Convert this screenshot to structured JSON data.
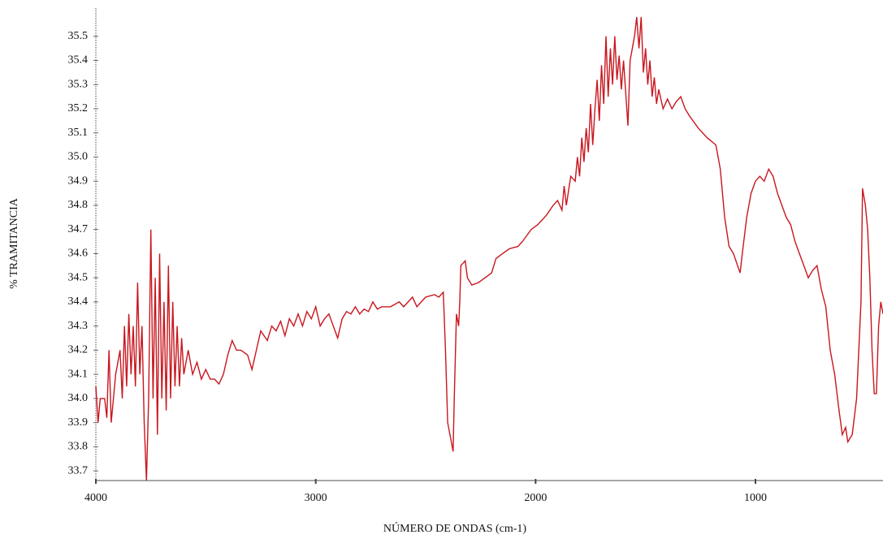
{
  "chart_data": {
    "type": "line",
    "xlabel": "NÚMERO DE ONDAS (cm-1)",
    "ylabel": "% TRAMITANCIA",
    "xlim": [
      4000,
      420
    ],
    "ylim": [
      33.66,
      35.6
    ],
    "xticks": [
      4000,
      3000,
      2000,
      1000
    ],
    "yticks": [
      33.7,
      33.8,
      33.9,
      {
        "value": 34,
        "label": "34.0"
      },
      34.1,
      34.2,
      34.3,
      34.4,
      34.5,
      34.6,
      34.7,
      34.8,
      34.9,
      {
        "value": 35,
        "label": "35.0"
      },
      35.1,
      35.2,
      35.3,
      35.4,
      35.5
    ],
    "x": [
      4000,
      3990,
      3980,
      3960,
      3950,
      3940,
      3930,
      3910,
      3890,
      3880,
      3870,
      3860,
      3850,
      3840,
      3830,
      3820,
      3810,
      3800,
      3790,
      3780,
      3770,
      3760,
      3750,
      3740,
      3730,
      3720,
      3710,
      3700,
      3690,
      3680,
      3670,
      3660,
      3650,
      3640,
      3630,
      3620,
      3610,
      3600,
      3580,
      3560,
      3540,
      3520,
      3500,
      3480,
      3460,
      3440,
      3420,
      3400,
      3380,
      3360,
      3340,
      3310,
      3290,
      3270,
      3250,
      3220,
      3200,
      3180,
      3160,
      3140,
      3120,
      3100,
      3080,
      3060,
      3040,
      3020,
      3000,
      2980,
      2960,
      2940,
      2920,
      2900,
      2880,
      2860,
      2840,
      2820,
      2800,
      2780,
      2760,
      2740,
      2720,
      2700,
      2660,
      2620,
      2600,
      2580,
      2560,
      2540,
      2520,
      2500,
      2460,
      2440,
      2420,
      2410,
      2400,
      2375,
      2370,
      2360,
      2350,
      2345,
      2340,
      2320,
      2310,
      2290,
      2260,
      2230,
      2200,
      2180,
      2150,
      2120,
      2080,
      2060,
      2020,
      1990,
      1950,
      1920,
      1900,
      1880,
      1870,
      1860,
      1840,
      1820,
      1810,
      1800,
      1790,
      1780,
      1770,
      1760,
      1750,
      1740,
      1730,
      1720,
      1710,
      1700,
      1690,
      1680,
      1670,
      1660,
      1650,
      1640,
      1630,
      1620,
      1610,
      1600,
      1580,
      1570,
      1560,
      1550,
      1540,
      1530,
      1520,
      1510,
      1500,
      1490,
      1480,
      1470,
      1460,
      1450,
      1440,
      1420,
      1400,
      1380,
      1360,
      1340,
      1320,
      1300,
      1260,
      1220,
      1180,
      1160,
      1140,
      1120,
      1100,
      1070,
      1060,
      1040,
      1020,
      1000,
      980,
      960,
      940,
      920,
      900,
      880,
      860,
      840,
      820,
      800,
      780,
      760,
      740,
      720,
      700,
      680,
      660,
      640,
      620,
      605,
      590,
      580,
      560,
      540,
      520,
      513,
      500,
      490,
      480,
      470,
      460,
      450,
      440,
      430,
      420
    ],
    "series": [
      {
        "color": "#c8161e",
        "values": [
          34.05,
          33.9,
          34.0,
          34.0,
          33.92,
          34.2,
          33.9,
          34.1,
          34.2,
          34.0,
          34.3,
          34.05,
          34.35,
          34.1,
          34.3,
          34.05,
          34.48,
          34.1,
          34.3,
          33.9,
          33.66,
          34.0,
          34.7,
          34.0,
          34.5,
          33.85,
          34.6,
          34.0,
          34.4,
          33.95,
          34.55,
          34.0,
          34.4,
          34.05,
          34.3,
          34.05,
          34.25,
          34.1,
          34.2,
          34.1,
          34.15,
          34.08,
          34.12,
          34.08,
          34.08,
          34.06,
          34.1,
          34.18,
          34.24,
          34.2,
          34.2,
          34.18,
          34.12,
          34.2,
          34.28,
          34.24,
          34.3,
          34.28,
          34.32,
          34.26,
          34.33,
          34.3,
          34.35,
          34.3,
          34.36,
          34.33,
          34.38,
          34.3,
          34.33,
          34.35,
          34.3,
          34.25,
          34.33,
          34.36,
          34.35,
          34.38,
          34.35,
          34.37,
          34.36,
          34.4,
          34.37,
          34.38,
          34.38,
          34.4,
          34.38,
          34.4,
          34.42,
          34.38,
          34.4,
          34.42,
          34.43,
          34.42,
          34.44,
          34.2,
          33.9,
          33.78,
          34.0,
          34.35,
          34.3,
          34.4,
          34.55,
          34.57,
          34.5,
          34.47,
          34.48,
          34.5,
          34.52,
          34.58,
          34.6,
          34.62,
          34.63,
          34.65,
          34.7,
          34.72,
          34.76,
          34.8,
          34.82,
          34.78,
          34.88,
          34.8,
          34.92,
          34.9,
          35.0,
          34.92,
          35.08,
          34.98,
          35.12,
          35.02,
          35.22,
          35.05,
          35.2,
          35.32,
          35.15,
          35.38,
          35.22,
          35.5,
          35.25,
          35.45,
          35.3,
          35.5,
          35.32,
          35.42,
          35.28,
          35.4,
          35.13,
          35.4,
          35.45,
          35.5,
          35.58,
          35.45,
          35.58,
          35.35,
          35.45,
          35.3,
          35.4,
          35.25,
          35.33,
          35.22,
          35.28,
          35.2,
          35.24,
          35.2,
          35.23,
          35.25,
          35.2,
          35.17,
          35.12,
          35.08,
          35.05,
          34.95,
          34.75,
          34.63,
          34.6,
          34.52,
          34.6,
          34.75,
          34.85,
          34.9,
          34.92,
          34.9,
          34.95,
          34.92,
          34.85,
          34.8,
          34.75,
          34.72,
          34.65,
          34.6,
          34.55,
          34.5,
          34.53,
          34.55,
          34.45,
          34.38,
          34.2,
          34.1,
          33.95,
          33.85,
          33.88,
          33.82,
          33.85,
          34.0,
          34.4,
          34.87,
          34.8,
          34.7,
          34.5,
          34.2,
          34.02,
          34.02,
          34.3,
          34.4,
          34.35
        ]
      }
    ]
  }
}
